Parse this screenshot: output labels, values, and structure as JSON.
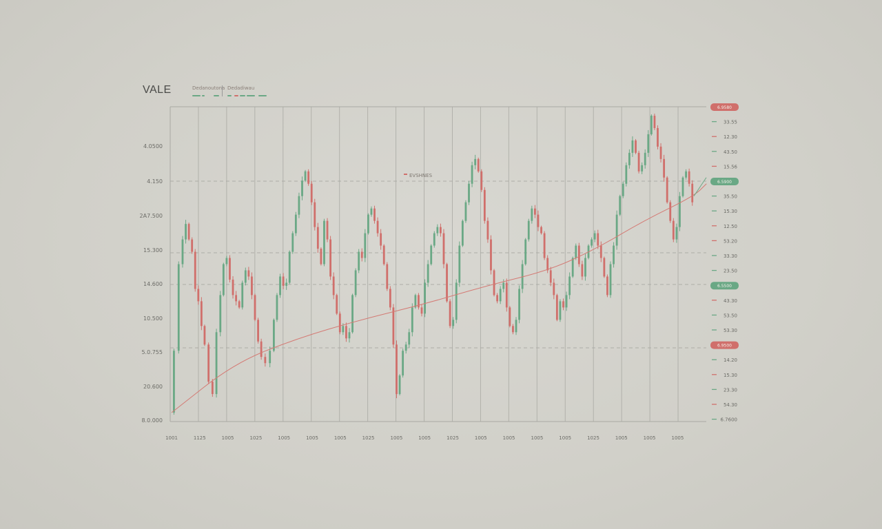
{
  "title": "VALE",
  "colors": {
    "up": "#6aa885",
    "down": "#d06f6b",
    "trend": "#d47a74",
    "grid": "#a9a9a3",
    "axis_text": "#6b6b66",
    "background": "#d3d2cb"
  },
  "chart_data": {
    "type": "candlestick",
    "y_tick_labels": [
      "4.0500",
      "4.150",
      "2A7.500",
      "15.300",
      "14.600",
      "10.500",
      "5.0.755",
      "20.600",
      "8.0.000"
    ],
    "x_tick_labels": [
      "1001",
      "1125",
      "1005",
      "1025",
      "1005",
      "1005",
      "1005",
      "1025",
      "1005",
      "1005",
      "1025",
      "1005",
      "1005",
      "1005",
      "1005",
      "1025",
      "1005",
      "1005",
      "1005"
    ],
    "right_labels": [
      {
        "text": "6.9580",
        "kind": "down",
        "badge": true
      },
      {
        "text": "33.55",
        "kind": "up"
      },
      {
        "text": "12.30",
        "kind": "down"
      },
      {
        "text": "43.50",
        "kind": "up"
      },
      {
        "text": "15.56",
        "kind": "down"
      },
      {
        "text": "6.5900",
        "kind": "up",
        "badge": true
      },
      {
        "text": "35.50",
        "kind": "up"
      },
      {
        "text": "15.30",
        "kind": "up"
      },
      {
        "text": "12.50",
        "kind": "down"
      },
      {
        "text": "53.20",
        "kind": "down"
      },
      {
        "text": "33.30",
        "kind": "up"
      },
      {
        "text": "23.50",
        "kind": "up"
      },
      {
        "text": "6.5500",
        "kind": "up",
        "badge": true
      },
      {
        "text": "43.30",
        "kind": "down"
      },
      {
        "text": "53.50",
        "kind": "up"
      },
      {
        "text": "53.30",
        "kind": "up"
      },
      {
        "text": "6.9500",
        "kind": "down",
        "badge": true
      },
      {
        "text": "14.20",
        "kind": "up"
      },
      {
        "text": "15.30",
        "kind": "down"
      },
      {
        "text": "23.30",
        "kind": "up"
      },
      {
        "text": "54.30",
        "kind": "down"
      },
      {
        "text": "6.7600",
        "kind": "up"
      }
    ],
    "annotation": "EVSHNES",
    "legend": [
      "Dedanoutona",
      "Dedadiwau"
    ],
    "y_range": [
      0,
      100
    ],
    "path_points": [
      [
        0,
        2
      ],
      [
        3,
        22
      ],
      [
        6,
        50
      ],
      [
        8,
        58
      ],
      [
        10,
        63
      ],
      [
        12,
        58
      ],
      [
        14,
        54
      ],
      [
        16,
        42
      ],
      [
        18,
        38
      ],
      [
        20,
        30
      ],
      [
        22,
        24
      ],
      [
        25,
        12
      ],
      [
        27,
        8
      ],
      [
        30,
        28
      ],
      [
        32,
        40
      ],
      [
        34,
        50
      ],
      [
        36,
        52
      ],
      [
        38,
        45
      ],
      [
        40,
        40
      ],
      [
        42,
        38
      ],
      [
        44,
        36
      ],
      [
        46,
        44
      ],
      [
        48,
        48
      ],
      [
        50,
        46
      ],
      [
        52,
        40
      ],
      [
        54,
        32
      ],
      [
        56,
        25
      ],
      [
        58,
        20
      ],
      [
        61,
        18
      ],
      [
        64,
        22
      ],
      [
        66,
        32
      ],
      [
        68,
        40
      ],
      [
        70,
        46
      ],
      [
        72,
        43
      ],
      [
        74,
        44
      ],
      [
        76,
        54
      ],
      [
        78,
        60
      ],
      [
        80,
        66
      ],
      [
        82,
        72
      ],
      [
        84,
        77
      ],
      [
        86,
        80
      ],
      [
        88,
        76
      ],
      [
        90,
        70
      ],
      [
        92,
        62
      ],
      [
        94,
        55
      ],
      [
        96,
        50
      ],
      [
        98,
        64
      ],
      [
        100,
        58
      ],
      [
        102,
        46
      ],
      [
        104,
        40
      ],
      [
        106,
        34
      ],
      [
        108,
        28
      ],
      [
        110,
        30
      ],
      [
        112,
        26
      ],
      [
        114,
        28
      ],
      [
        116,
        40
      ],
      [
        118,
        48
      ],
      [
        120,
        54
      ],
      [
        122,
        52
      ],
      [
        124,
        60
      ],
      [
        126,
        66
      ],
      [
        128,
        68
      ],
      [
        130,
        64
      ],
      [
        132,
        60
      ],
      [
        134,
        56
      ],
      [
        136,
        50
      ],
      [
        138,
        42
      ],
      [
        140,
        36
      ],
      [
        142,
        24
      ],
      [
        144,
        8
      ],
      [
        146,
        14
      ],
      [
        148,
        22
      ],
      [
        150,
        24
      ],
      [
        152,
        28
      ],
      [
        154,
        36
      ],
      [
        156,
        40
      ],
      [
        158,
        36
      ],
      [
        160,
        34
      ],
      [
        162,
        44
      ],
      [
        164,
        50
      ],
      [
        166,
        56
      ],
      [
        168,
        60
      ],
      [
        170,
        62
      ],
      [
        172,
        60
      ],
      [
        174,
        50
      ],
      [
        176,
        38
      ],
      [
        178,
        30
      ],
      [
        180,
        32
      ],
      [
        182,
        44
      ],
      [
        184,
        56
      ],
      [
        186,
        64
      ],
      [
        188,
        70
      ],
      [
        190,
        76
      ],
      [
        192,
        82
      ],
      [
        194,
        84
      ],
      [
        196,
        80
      ],
      [
        198,
        74
      ],
      [
        200,
        64
      ],
      [
        202,
        58
      ],
      [
        204,
        48
      ],
      [
        206,
        40
      ],
      [
        208,
        38
      ],
      [
        210,
        42
      ],
      [
        212,
        44
      ],
      [
        214,
        36
      ],
      [
        216,
        30
      ],
      [
        218,
        28
      ],
      [
        220,
        32
      ],
      [
        222,
        42
      ],
      [
        224,
        50
      ],
      [
        226,
        58
      ],
      [
        228,
        64
      ],
      [
        230,
        68
      ],
      [
        232,
        66
      ],
      [
        234,
        62
      ],
      [
        236,
        60
      ],
      [
        238,
        52
      ],
      [
        240,
        48
      ],
      [
        242,
        44
      ],
      [
        244,
        40
      ],
      [
        246,
        32
      ],
      [
        248,
        38
      ],
      [
        250,
        36
      ],
      [
        252,
        40
      ],
      [
        254,
        46
      ],
      [
        256,
        52
      ],
      [
        258,
        56
      ],
      [
        260,
        50
      ],
      [
        262,
        46
      ],
      [
        264,
        52
      ],
      [
        266,
        56
      ],
      [
        268,
        58
      ],
      [
        270,
        60
      ],
      [
        272,
        56
      ],
      [
        274,
        52
      ],
      [
        276,
        46
      ],
      [
        278,
        40
      ],
      [
        280,
        50
      ],
      [
        282,
        56
      ],
      [
        284,
        66
      ],
      [
        286,
        72
      ],
      [
        288,
        76
      ],
      [
        290,
        82
      ],
      [
        292,
        86
      ],
      [
        294,
        90
      ],
      [
        296,
        86
      ],
      [
        298,
        80
      ],
      [
        300,
        82
      ],
      [
        302,
        86
      ],
      [
        304,
        92
      ],
      [
        306,
        98
      ],
      [
        308,
        94
      ],
      [
        310,
        88
      ],
      [
        312,
        84
      ],
      [
        314,
        78
      ],
      [
        316,
        70
      ],
      [
        318,
        64
      ],
      [
        320,
        58
      ],
      [
        322,
        62
      ],
      [
        324,
        72
      ],
      [
        326,
        78
      ],
      [
        328,
        80
      ],
      [
        330,
        76
      ],
      [
        332,
        70
      ]
    ],
    "trend_points": [
      [
        0,
        2
      ],
      [
        40,
        18
      ],
      [
        80,
        26
      ],
      [
        120,
        32
      ],
      [
        160,
        37
      ],
      [
        200,
        43
      ],
      [
        240,
        48
      ],
      [
        270,
        55
      ],
      [
        300,
        64
      ],
      [
        332,
        72
      ],
      [
        340,
        76
      ]
    ]
  }
}
